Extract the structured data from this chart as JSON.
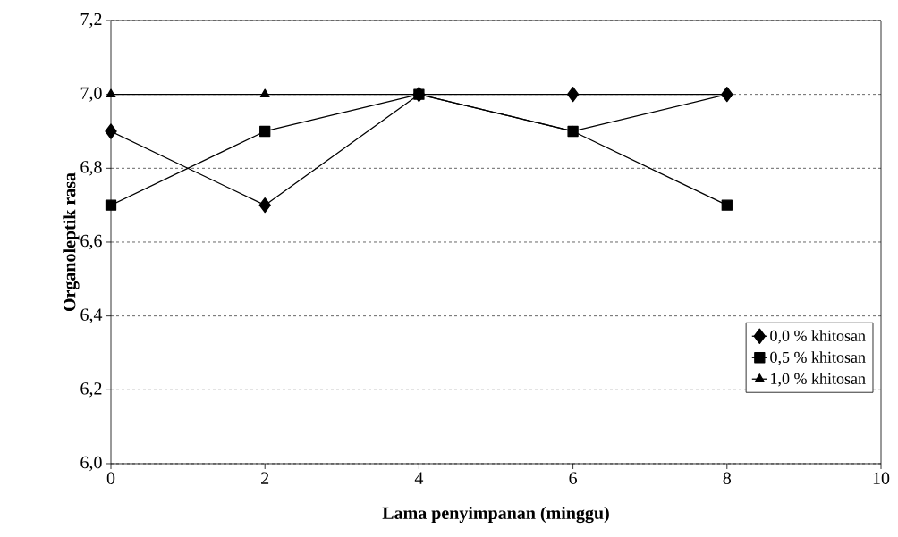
{
  "chart_data": {
    "type": "line",
    "xlabel": "Lama penyimpanan (minggu)",
    "ylabel": "Organoleptik rasa",
    "x": [
      0,
      2,
      4,
      6,
      8
    ],
    "series": [
      {
        "name": "0,0 % khitosan",
        "color": "#000000",
        "marker": "diamond",
        "values": [
          6.9,
          6.7,
          7.0,
          7.0,
          7.0
        ]
      },
      {
        "name": "0,5 % khitosan",
        "color": "#000000",
        "marker": "square",
        "values": [
          6.7,
          6.9,
          7.0,
          6.9,
          6.7
        ]
      },
      {
        "name": "1,0 % khitosan",
        "color": "#000000",
        "marker": "triangle",
        "values": [
          7.0,
          7.0,
          7.0,
          6.9,
          7.0
        ]
      }
    ],
    "xlim": [
      0,
      10
    ],
    "xticks": [
      0,
      2,
      4,
      6,
      8,
      10
    ],
    "ylim": [
      6.0,
      7.2
    ],
    "yticks": [
      {
        "value": 6.0,
        "label": "6,0"
      },
      {
        "value": 6.2,
        "label": "6,2"
      },
      {
        "value": 6.4,
        "label": "6,4"
      },
      {
        "value": 6.6,
        "label": "6,6"
      },
      {
        "value": 6.8,
        "label": "6,8"
      },
      {
        "value": 7.0,
        "label": "7,0"
      },
      {
        "value": 7.2,
        "label": "7,2"
      }
    ],
    "grid": "y",
    "legend": "bottom right",
    "line_style": "solid"
  }
}
